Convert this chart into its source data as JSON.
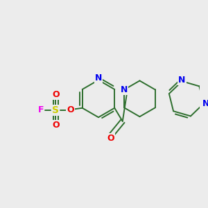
{
  "background_color": "#ececec",
  "colors": {
    "bond": "#2d6e2d",
    "N": "#0000ee",
    "O": "#ee0000",
    "S": "#cccc00",
    "F": "#ee00ee"
  },
  "figsize": [
    3.0,
    3.0
  ],
  "dpi": 100
}
